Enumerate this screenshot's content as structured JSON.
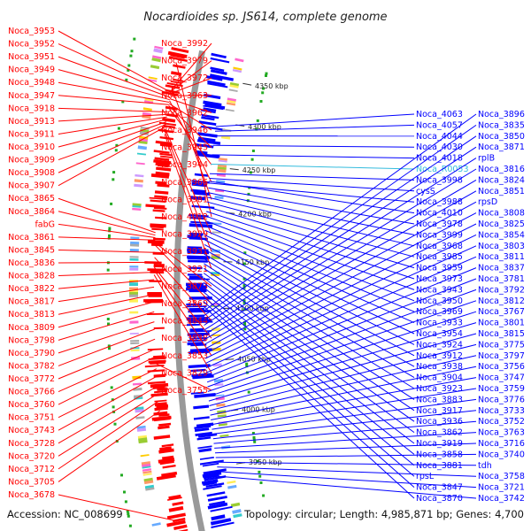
{
  "header": {
    "title": "Nocardioides sp. JS614, complete genome"
  },
  "footer": {
    "accession": "Accession: NC_008699",
    "summary": "Topology: circular; Length: 4,985,871 bp; Genes: 4,700"
  },
  "colors": {
    "forward": "#ff0000",
    "reverse": "#0000ff",
    "rna": "#33bbdd",
    "backbone": "#999999",
    "gc_mark": "#22aa22"
  },
  "scale": {
    "ticks": [
      {
        "label": "4350 kbp",
        "t": 0.05
      },
      {
        "label": "4300 kbp",
        "t": 0.14
      },
      {
        "label": "4250 kbp",
        "t": 0.235
      },
      {
        "label": "4200 kbp",
        "t": 0.33
      },
      {
        "label": "4150 kbp",
        "t": 0.435
      },
      {
        "label": "4100 kbp",
        "t": 0.535
      },
      {
        "label": "4050 kbp",
        "t": 0.645
      },
      {
        "label": "4000 kbp",
        "t": 0.755
      },
      {
        "label": "3950 kbp",
        "t": 0.87
      }
    ]
  },
  "left_labels": [
    {
      "text": "Noca_3953",
      "t": 0.095
    },
    {
      "text": "Noca_3952",
      "t": 0.1
    },
    {
      "text": "Noca_3951",
      "t": 0.105
    },
    {
      "text": "Noca_3949",
      "t": 0.11
    },
    {
      "text": "Noca_3948",
      "t": 0.115
    },
    {
      "text": "Noca_3947",
      "t": 0.12
    },
    {
      "text": "Noca_3918",
      "t": 0.135
    },
    {
      "text": "Noca_3913",
      "t": 0.14
    },
    {
      "text": "Noca_3911",
      "t": 0.145
    },
    {
      "text": "Noca_3910",
      "t": 0.15
    },
    {
      "text": "Noca_3909",
      "t": 0.155
    },
    {
      "text": "Noca_3908",
      "t": 0.16
    },
    {
      "text": "Noca_3907",
      "t": 0.165
    },
    {
      "text": "Noca_3865",
      "t": 0.38
    },
    {
      "text": "Noca_3864",
      "t": 0.385
    },
    {
      "text": "fabG",
      "t": 0.39
    },
    {
      "text": "Noca_3861",
      "t": 0.395
    },
    {
      "text": "Noca_3845",
      "t": 0.42
    },
    {
      "text": "Noca_3836",
      "t": 0.44
    },
    {
      "text": "Noca_3828",
      "t": 0.46
    },
    {
      "text": "Noca_3822",
      "t": 0.475
    },
    {
      "text": "Noca_3817",
      "t": 0.49
    },
    {
      "text": "Noca_3813",
      "t": 0.505
    },
    {
      "text": "Noca_3809",
      "t": 0.52
    },
    {
      "text": "Noca_3798",
      "t": 0.54
    },
    {
      "text": "Noca_3790",
      "t": 0.56
    },
    {
      "text": "Noca_3782",
      "t": 0.575
    },
    {
      "text": "Noca_3772",
      "t": 0.595
    },
    {
      "text": "Noca_3766",
      "t": 0.615
    },
    {
      "text": "Noca_3760",
      "t": 0.63
    },
    {
      "text": "Noca_3751",
      "t": 0.655
    },
    {
      "text": "Noca_3743",
      "t": 0.67
    },
    {
      "text": "Noca_3728",
      "t": 0.69
    },
    {
      "text": "Noca_3720",
      "t": 0.705
    },
    {
      "text": "Noca_3712",
      "t": 0.72
    },
    {
      "text": "Noca_3705",
      "t": 0.74
    },
    {
      "text": "Noca_3678",
      "t": 0.965
    },
    {
      "text": "Noca_3992",
      "t": 0.09
    },
    {
      "text": "Noca_3979",
      "t": 0.092
    },
    {
      "text": "Noca_3972",
      "t": 0.097
    },
    {
      "text": "Noca_3963",
      "t": 0.102
    },
    {
      "text": "Noca_3962",
      "t": 0.108
    },
    {
      "text": "Noca_3946",
      "t": 0.118
    },
    {
      "text": "Noca_3945",
      "t": 0.122
    },
    {
      "text": "Noca_3944",
      "t": 0.126
    },
    {
      "text": "Noca_3966",
      "t": 0.112
    },
    {
      "text": "Noca_3981",
      "t": 0.085
    },
    {
      "text": "Noca_4012",
      "t": 0.035
    },
    {
      "text": "Noca_3929",
      "t": 0.17
    },
    {
      "text": "Noca_3931",
      "t": 0.175
    },
    {
      "text": "Noca_3921",
      "t": 0.18
    },
    {
      "text": "Noca_3873",
      "t": 0.4
    },
    {
      "text": "Noca_3869",
      "t": 0.405
    },
    {
      "text": "Noca_3844",
      "t": 0.43
    },
    {
      "text": "Noca_3838",
      "t": 0.45
    },
    {
      "text": "Noca_3853",
      "t": 0.455
    },
    {
      "text": "Noca_3829",
      "t": 0.465
    },
    {
      "text": "Noca_3755",
      "t": 0.645
    }
  ],
  "right_labels": [
    {
      "text": "Noca_4063",
      "t": 0.05
    },
    {
      "text": "Noca_4057",
      "t": 0.055
    },
    {
      "text": "Noca_4044",
      "t": 0.06
    },
    {
      "text": "Noca_4030",
      "t": 0.07
    },
    {
      "text": "Noca_4018",
      "t": 0.08
    },
    {
      "text": "Noca_R0053",
      "t": 0.09,
      "rna": true
    },
    {
      "text": "Noca_3998",
      "t": 0.1
    },
    {
      "text": "cysS",
      "t": 0.105
    },
    {
      "text": "Noca_3988",
      "t": 0.11
    },
    {
      "text": "Noca_4010",
      "t": 0.108
    },
    {
      "text": "Noca_3978",
      "t": 0.115
    },
    {
      "text": "Noca_3999",
      "t": 0.12
    },
    {
      "text": "Noca_3968",
      "t": 0.125
    },
    {
      "text": "Noca_3985",
      "t": 0.13
    },
    {
      "text": "Noca_3959",
      "t": 0.135
    },
    {
      "text": "Noca_3973",
      "t": 0.14
    },
    {
      "text": "Noca_3943",
      "t": 0.145
    },
    {
      "text": "Noca_3950",
      "t": 0.15
    },
    {
      "text": "Noca_3969",
      "t": 0.155
    },
    {
      "text": "Noca_3933",
      "t": 0.16
    },
    {
      "text": "Noca_3954",
      "t": 0.165
    },
    {
      "text": "Noca_3924",
      "t": 0.17
    },
    {
      "text": "Noca_3912",
      "t": 0.175
    },
    {
      "text": "Noca_3938",
      "t": 0.18
    },
    {
      "text": "Noca_3904",
      "t": 0.185
    },
    {
      "text": "Noca_3923",
      "t": 0.19
    },
    {
      "text": "Noca_3883",
      "t": 0.195
    },
    {
      "text": "Noca_3917",
      "t": 0.2
    },
    {
      "text": "Noca_3936",
      "t": 0.205
    },
    {
      "text": "Noca_3862",
      "t": 0.21
    },
    {
      "text": "Noca_3919",
      "t": 0.215
    },
    {
      "text": "Noca_3858",
      "t": 0.22
    },
    {
      "text": "Noca_3881",
      "t": 0.225
    },
    {
      "text": "rpsL",
      "t": 0.23
    },
    {
      "text": "Noca_3847",
      "t": 0.235
    },
    {
      "text": "Noca_3870",
      "t": 0.24
    },
    {
      "text": "Noca_3896",
      "t": 0.245
    },
    {
      "text": "Noca_3835",
      "t": 0.25
    },
    {
      "text": "Noca_3850",
      "t": 0.255
    },
    {
      "text": "Noca_3871",
      "t": 0.26
    },
    {
      "text": "rplB",
      "t": 0.265
    },
    {
      "text": "Noca_3816",
      "t": 0.27
    },
    {
      "text": "Noca_3824",
      "t": 0.275
    },
    {
      "text": "Noca_3851",
      "t": 0.28
    },
    {
      "text": "rpsD",
      "t": 0.285
    },
    {
      "text": "Noca_3808",
      "t": 0.29
    },
    {
      "text": "Noca_3825",
      "t": 0.295
    },
    {
      "text": "Noca_3854",
      "t": 0.3
    },
    {
      "text": "Noca_3803",
      "t": 0.305
    },
    {
      "text": "Noca_3811",
      "t": 0.31
    },
    {
      "text": "Noca_3837",
      "t": 0.315
    },
    {
      "text": "Noca_3781",
      "t": 0.32
    },
    {
      "text": "Noca_3792",
      "t": 0.325
    },
    {
      "text": "Noca_3812",
      "t": 0.33
    },
    {
      "text": "Noca_3767",
      "t": 0.335
    },
    {
      "text": "Noca_3801",
      "t": 0.34
    },
    {
      "text": "Noca_3815",
      "t": 0.345
    },
    {
      "text": "Noca_3775",
      "t": 0.35
    },
    {
      "text": "Noca_3797",
      "t": 0.355
    },
    {
      "text": "Noca_3756",
      "t": 0.36
    },
    {
      "text": "Noca_3747",
      "t": 0.365
    },
    {
      "text": "Noca_3759",
      "t": 0.37
    },
    {
      "text": "Noca_3776",
      "t": 0.375
    },
    {
      "text": "Noca_3733",
      "t": 0.38
    },
    {
      "text": "Noca_3752",
      "t": 0.385
    },
    {
      "text": "Noca_3763",
      "t": 0.39
    },
    {
      "text": "Noca_3716",
      "t": 0.395
    },
    {
      "text": "Noca_3740",
      "t": 0.4
    },
    {
      "text": "tdh",
      "t": 0.405
    },
    {
      "text": "Noca_3758",
      "t": 0.41
    },
    {
      "text": "Noca_3721",
      "t": 0.415
    },
    {
      "text": "Noca_3742",
      "t": 0.42
    }
  ]
}
